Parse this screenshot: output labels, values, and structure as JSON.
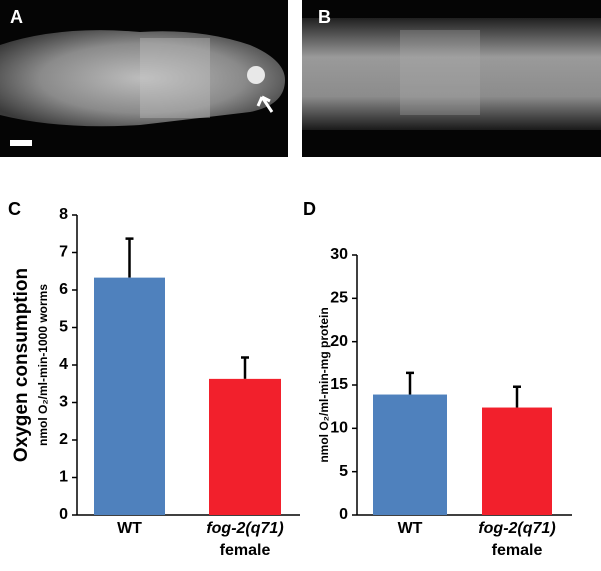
{
  "panel_labels": [
    "A",
    "B",
    "C",
    "D"
  ],
  "chart_data": [
    {
      "type": "bar",
      "y_label": "Oxygen consumption",
      "y_sublabel": "nmol O₂/ml-min-1000 worms",
      "categories": [
        "WT",
        "fog-2(q71) female"
      ],
      "values": [
        6.33,
        3.63
      ],
      "errors": [
        1.04,
        0.57
      ],
      "colors": [
        "#4f81bd",
        "#f2202c"
      ],
      "ylim": [
        0,
        8
      ],
      "yticks": [
        0,
        1,
        2,
        3,
        4,
        5,
        6,
        7,
        8
      ]
    },
    {
      "type": "bar",
      "y_sublabel": "nmol O₂/ml-min-mg protein",
      "categories": [
        "WT",
        "fog-2(q71) female"
      ],
      "values": [
        13.9,
        12.4
      ],
      "errors": [
        2.5,
        2.4
      ],
      "colors": [
        "#4f81bd",
        "#f2202c"
      ],
      "ylim": [
        0,
        30
      ],
      "yticks": [
        0,
        5,
        10,
        15,
        20,
        25,
        30
      ]
    }
  ]
}
